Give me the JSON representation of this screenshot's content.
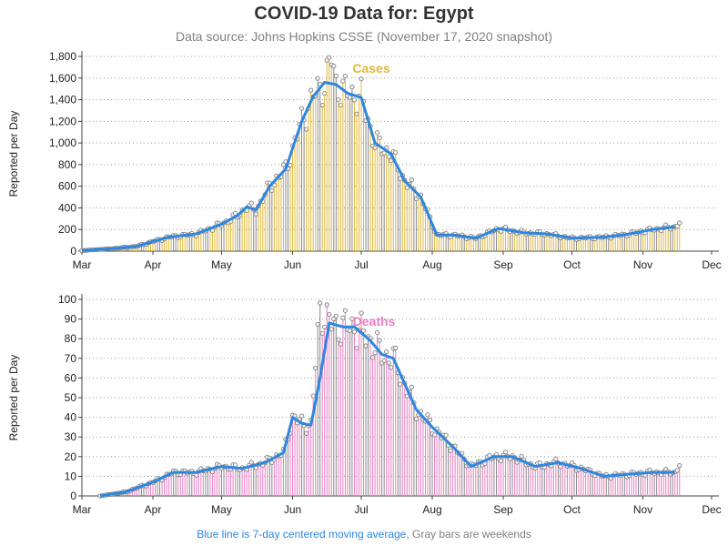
{
  "header": {
    "title": "COVID-19 Data for: Egypt",
    "subtitle": "Data source: Johns Hopkins CSSE (November 17, 2020 snapshot)"
  },
  "footnote": {
    "moving_average": "Blue line is 7-day centered moving average,",
    "weekends": "Gray bars are weekends"
  },
  "colors": {
    "cases": "#e0b83a",
    "deaths": "#e87fc3",
    "average": "#2e86de",
    "weekend": "#888888"
  },
  "chart_data": [
    {
      "type": "bar",
      "title": "Cases",
      "ylabel": "Reported per Day",
      "ylim": [
        0,
        1800
      ],
      "yticks": [
        0,
        200,
        400,
        600,
        800,
        1000,
        1200,
        1400,
        1600,
        1800
      ],
      "ytick_labels": [
        "0",
        "200",
        "400",
        "600",
        "800",
        "1,000",
        "1,200",
        "1,400",
        "1,600",
        "1,800"
      ],
      "x_range": [
        "2020-03-01",
        "2020-12-01"
      ],
      "xticks": [
        "2020-03-01",
        "2020-04-01",
        "2020-05-01",
        "2020-06-01",
        "2020-07-01",
        "2020-08-01",
        "2020-09-01",
        "2020-10-01",
        "2020-11-01",
        "2020-12-01"
      ],
      "xtick_labels": [
        "Mar",
        "Apr",
        "May",
        "Jun",
        "Jul",
        "Aug",
        "Sep",
        "Oct",
        "Nov",
        "Dec"
      ],
      "grid": "horizontal dotted",
      "series_average_name": "7-day centered moving average",
      "average_points": [
        [
          "2020-03-01",
          5
        ],
        [
          "2020-03-15",
          25
        ],
        [
          "2020-03-25",
          45
        ],
        [
          "2020-04-01",
          90
        ],
        [
          "2020-04-08",
          130
        ],
        [
          "2020-04-20",
          160
        ],
        [
          "2020-05-01",
          250
        ],
        [
          "2020-05-08",
          330
        ],
        [
          "2020-05-12",
          410
        ],
        [
          "2020-05-16",
          380
        ],
        [
          "2020-05-22",
          600
        ],
        [
          "2020-05-29",
          760
        ],
        [
          "2020-06-05",
          1200
        ],
        [
          "2020-06-10",
          1430
        ],
        [
          "2020-06-15",
          1560
        ],
        [
          "2020-06-20",
          1540
        ],
        [
          "2020-06-25",
          1460
        ],
        [
          "2020-07-01",
          1420
        ],
        [
          "2020-07-07",
          1000
        ],
        [
          "2020-07-14",
          900
        ],
        [
          "2020-07-20",
          650
        ],
        [
          "2020-07-27",
          500
        ],
        [
          "2020-08-03",
          150
        ],
        [
          "2020-08-10",
          150
        ],
        [
          "2020-08-20",
          120
        ],
        [
          "2020-08-30",
          210
        ],
        [
          "2020-09-10",
          170
        ],
        [
          "2020-09-20",
          160
        ],
        [
          "2020-10-01",
          120
        ],
        [
          "2020-10-15",
          130
        ],
        [
          "2020-10-25",
          155
        ],
        [
          "2020-11-05",
          200
        ],
        [
          "2020-11-15",
          225
        ]
      ],
      "daily_points": [
        [
          "2020-03-01",
          5
        ],
        [
          "2020-03-15",
          25
        ],
        [
          "2020-03-25",
          45
        ],
        [
          "2020-04-01",
          90
        ],
        [
          "2020-04-08",
          130
        ],
        [
          "2020-04-20",
          160
        ],
        [
          "2020-05-01",
          250
        ],
        [
          "2020-05-08",
          330
        ],
        [
          "2020-05-12",
          410
        ],
        [
          "2020-05-16",
          380
        ],
        [
          "2020-05-22",
          600
        ],
        [
          "2020-05-29",
          760
        ],
        [
          "2020-06-05",
          1200
        ],
        [
          "2020-06-10",
          1430
        ],
        [
          "2020-06-15",
          1560
        ],
        [
          "2020-06-18",
          1780
        ],
        [
          "2020-06-20",
          1540
        ],
        [
          "2020-06-25",
          1460
        ],
        [
          "2020-07-01",
          1420
        ],
        [
          "2020-07-07",
          1000
        ],
        [
          "2020-07-14",
          900
        ],
        [
          "2020-07-20",
          650
        ],
        [
          "2020-07-27",
          500
        ],
        [
          "2020-08-03",
          150
        ],
        [
          "2020-08-10",
          150
        ],
        [
          "2020-08-20",
          120
        ],
        [
          "2020-08-30",
          210
        ],
        [
          "2020-09-10",
          170
        ],
        [
          "2020-09-20",
          160
        ],
        [
          "2020-10-01",
          120
        ],
        [
          "2020-10-15",
          130
        ],
        [
          "2020-10-25",
          155
        ],
        [
          "2020-11-05",
          200
        ],
        [
          "2020-11-15",
          225
        ],
        [
          "2020-11-17",
          270
        ]
      ]
    },
    {
      "type": "bar",
      "title": "Deaths",
      "ylabel": "Reported per Day",
      "ylim": [
        0,
        100
      ],
      "yticks": [
        0,
        10,
        20,
        30,
        40,
        50,
        60,
        70,
        80,
        90,
        100
      ],
      "ytick_labels": [
        "0",
        "10",
        "20",
        "30",
        "40",
        "50",
        "60",
        "70",
        "80",
        "90",
        "100"
      ],
      "x_range": [
        "2020-03-01",
        "2020-12-01"
      ],
      "xticks": [
        "2020-03-01",
        "2020-04-01",
        "2020-05-01",
        "2020-06-01",
        "2020-07-01",
        "2020-08-01",
        "2020-09-01",
        "2020-10-01",
        "2020-11-01",
        "2020-12-01"
      ],
      "xtick_labels": [
        "Mar",
        "Apr",
        "May",
        "Jun",
        "Jul",
        "Aug",
        "Sep",
        "Oct",
        "Nov",
        "Dec"
      ],
      "grid": "horizontal dotted",
      "series_average_name": "7-day centered moving average",
      "average_points": [
        [
          "2020-03-09",
          0
        ],
        [
          "2020-03-20",
          2
        ],
        [
          "2020-04-01",
          7
        ],
        [
          "2020-04-10",
          12
        ],
        [
          "2020-04-20",
          12
        ],
        [
          "2020-05-01",
          15
        ],
        [
          "2020-05-10",
          14
        ],
        [
          "2020-05-20",
          17
        ],
        [
          "2020-05-28",
          22
        ],
        [
          "2020-06-01",
          40
        ],
        [
          "2020-06-05",
          37
        ],
        [
          "2020-06-09",
          36
        ],
        [
          "2020-06-13",
          60
        ],
        [
          "2020-06-17",
          88
        ],
        [
          "2020-06-23",
          86
        ],
        [
          "2020-06-28",
          86
        ],
        [
          "2020-07-05",
          79
        ],
        [
          "2020-07-10",
          72
        ],
        [
          "2020-07-15",
          70
        ],
        [
          "2020-07-20",
          57
        ],
        [
          "2020-07-25",
          44
        ],
        [
          "2020-08-01",
          35
        ],
        [
          "2020-08-10",
          25
        ],
        [
          "2020-08-18",
          15
        ],
        [
          "2020-08-28",
          20
        ],
        [
          "2020-09-05",
          20
        ],
        [
          "2020-09-15",
          15
        ],
        [
          "2020-09-25",
          17
        ],
        [
          "2020-10-05",
          14
        ],
        [
          "2020-10-15",
          10
        ],
        [
          "2020-10-25",
          11
        ],
        [
          "2020-11-05",
          12
        ],
        [
          "2020-11-15",
          12
        ]
      ],
      "daily_points": [
        [
          "2020-03-09",
          0
        ],
        [
          "2020-03-20",
          2
        ],
        [
          "2020-04-01",
          7
        ],
        [
          "2020-04-10",
          12
        ],
        [
          "2020-04-20",
          12
        ],
        [
          "2020-05-01",
          15
        ],
        [
          "2020-05-10",
          14
        ],
        [
          "2020-05-20",
          17
        ],
        [
          "2020-05-28",
          22
        ],
        [
          "2020-06-01",
          40
        ],
        [
          "2020-06-05",
          37
        ],
        [
          "2020-06-09",
          36
        ],
        [
          "2020-06-13",
          96
        ],
        [
          "2020-06-17",
          88
        ],
        [
          "2020-06-23",
          86
        ],
        [
          "2020-06-28",
          86
        ],
        [
          "2020-07-05",
          79
        ],
        [
          "2020-07-10",
          72
        ],
        [
          "2020-07-15",
          70
        ],
        [
          "2020-07-20",
          57
        ],
        [
          "2020-07-25",
          44
        ],
        [
          "2020-08-01",
          35
        ],
        [
          "2020-08-10",
          25
        ],
        [
          "2020-08-18",
          15
        ],
        [
          "2020-08-28",
          20
        ],
        [
          "2020-09-05",
          20
        ],
        [
          "2020-09-15",
          15
        ],
        [
          "2020-09-25",
          17
        ],
        [
          "2020-10-05",
          14
        ],
        [
          "2020-10-15",
          10
        ],
        [
          "2020-10-25",
          11
        ],
        [
          "2020-11-05",
          12
        ],
        [
          "2020-11-15",
          12
        ],
        [
          "2020-11-17",
          16
        ]
      ]
    }
  ]
}
